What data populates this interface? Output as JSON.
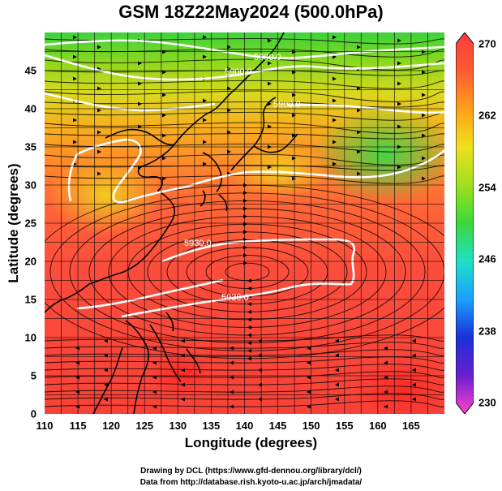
{
  "title": "GSM 18Z22May2024 (500.0hPa)",
  "axes": {
    "xlabel": "Longitude (degrees)",
    "ylabel": "Latitude  (degrees)",
    "xlim": [
      110,
      170
    ],
    "ylim": [
      0,
      50
    ],
    "xticks": [
      "110",
      "115",
      "120",
      "125",
      "130",
      "135",
      "140",
      "145",
      "150",
      "155",
      "160",
      "165"
    ],
    "yticks": [
      "0",
      "5",
      "10",
      "15",
      "20",
      "25",
      "30",
      "35",
      "40",
      "45"
    ],
    "grid": true
  },
  "colorbar": {
    "range": [
      230,
      270
    ],
    "labels": [
      "270",
      "262",
      "254",
      "246",
      "238",
      "230"
    ],
    "colors": [
      "#ff44cc",
      "#6a1fd0",
      "#1a2fd8",
      "#1aa0ff",
      "#1ee0c8",
      "#3ad83a",
      "#9ee01e",
      "#f0e01e",
      "#ffa018",
      "#ff5a32",
      "#ff3c3c"
    ]
  },
  "contour_labels": [
    "5900.0",
    "5900.0",
    "5900.0",
    "5930.0",
    "5930.0"
  ],
  "credits": {
    "line1": "Drawing by DCL (https://www.gfd-dennou.org/library/dcl/)",
    "line2": "Data from http://database.rish.kyoto-u.ac.jp/arch/jmadata/"
  }
}
